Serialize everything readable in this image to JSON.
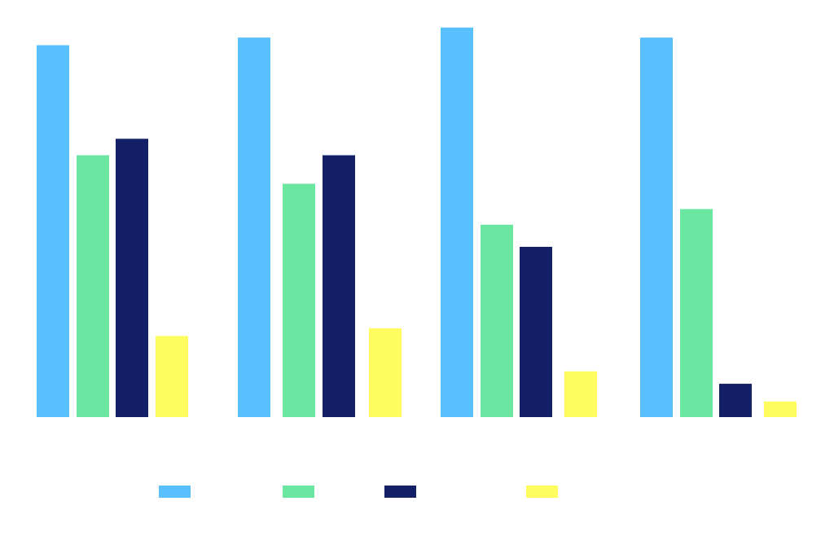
{
  "chart_data": {
    "type": "bar",
    "title": "",
    "xlabel": "",
    "ylabel": "",
    "categories": [
      "",
      "",
      "",
      ""
    ],
    "ylim": [
      0,
      100
    ],
    "grid": false,
    "legend_position": "bottom",
    "series": [
      {
        "name": "",
        "color": "#59C0FD",
        "values": [
          92.6,
          94.5,
          97.0,
          94.5
        ]
      },
      {
        "name": "",
        "color": "#6BE6A1",
        "values": [
          65.2,
          58.1,
          47.9,
          51.8
        ]
      },
      {
        "name": "",
        "color": "#131F66",
        "values": [
          69.3,
          65.2,
          42.4,
          8.3
        ]
      },
      {
        "name": "",
        "color": "#FFFC5F",
        "values": [
          20.2,
          22.1,
          11.4,
          3.9
        ]
      }
    ]
  }
}
